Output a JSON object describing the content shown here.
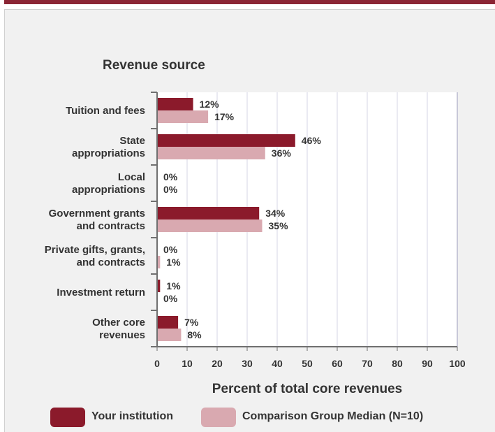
{
  "colors": {
    "top_bar": "#8b2635",
    "institution": "#8b1a2b",
    "comparison": "#d9a9b0",
    "panel_bg": "#f1f1f1",
    "plot_bg": "#ffffff",
    "grid": "#d6d6e6",
    "text": "#333333"
  },
  "chart_data": {
    "type": "bar",
    "orientation": "horizontal",
    "ylabel": "Revenue source",
    "xlabel": "Percent of total core revenues",
    "xlim": [
      0,
      100
    ],
    "xticks": [
      "0",
      "10",
      "20",
      "30",
      "40",
      "50",
      "60",
      "70",
      "80",
      "90",
      "100"
    ],
    "grid": true,
    "legend_position": "bottom",
    "categories": [
      [
        "Tuition and fees"
      ],
      [
        "State",
        "appropriations"
      ],
      [
        "Local",
        "appropriations"
      ],
      [
        "Government grants",
        "and contracts"
      ],
      [
        "Private gifts, grants,",
        "and contracts"
      ],
      [
        "Investment return"
      ],
      [
        "Other core",
        "revenues"
      ]
    ],
    "series": [
      {
        "name": "Your institution",
        "values": [
          12,
          46,
          0,
          34,
          0,
          1,
          7
        ],
        "labels": [
          "12%",
          "46%",
          "0%",
          "34%",
          "0%",
          "1%",
          "7%"
        ]
      },
      {
        "name": "Comparison Group Median (N=10)",
        "values": [
          17,
          36,
          0,
          35,
          1,
          0,
          8
        ],
        "labels": [
          "17%",
          "36%",
          "0%",
          "35%",
          "1%",
          "0%",
          "8%"
        ]
      }
    ]
  }
}
